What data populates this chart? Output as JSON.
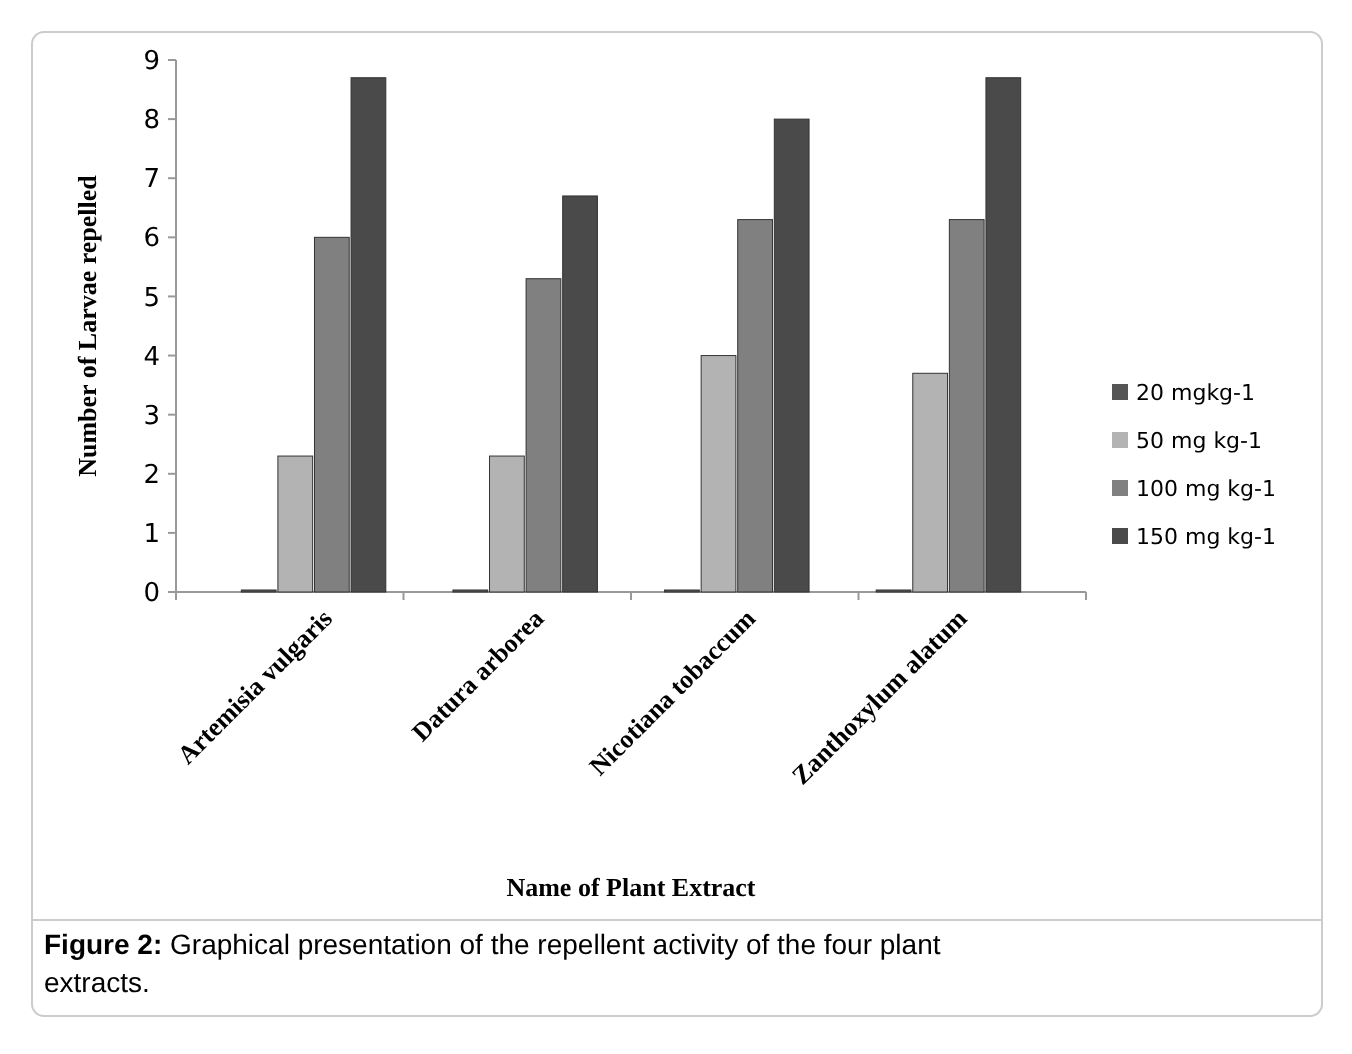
{
  "chart_data": {
    "type": "bar",
    "xlabel": "Name of Plant Extract",
    "ylabel": "Number of Larvae repelled",
    "categories": [
      "Artemisia vulgaris",
      "Datura arborea",
      "Nicotiana tobaccum",
      "Zanthoxylum alatum"
    ],
    "series": [
      {
        "name": "20 mgkg-1",
        "color": "#555555",
        "values": [
          0,
          0,
          0,
          0
        ]
      },
      {
        "name": "50 mg kg-1",
        "color": "#b3b3b3",
        "values": [
          2.3,
          2.3,
          4.0,
          3.7
        ]
      },
      {
        "name": "100 mg kg-1",
        "color": "#808080",
        "values": [
          6.0,
          5.3,
          6.3,
          6.3
        ]
      },
      {
        "name": "150 mg kg-1",
        "color": "#4a4a4a",
        "values": [
          8.7,
          6.7,
          8.0,
          8.7
        ]
      }
    ],
    "ylim": [
      0,
      9
    ],
    "yticks": [
      0,
      1,
      2,
      3,
      4,
      5,
      6,
      7,
      8,
      9
    ],
    "grid": false,
    "legend": "right",
    "annotations": [
      "Figure 2: Graphical presentation of the repellent activity of the four plant extracts."
    ]
  }
}
